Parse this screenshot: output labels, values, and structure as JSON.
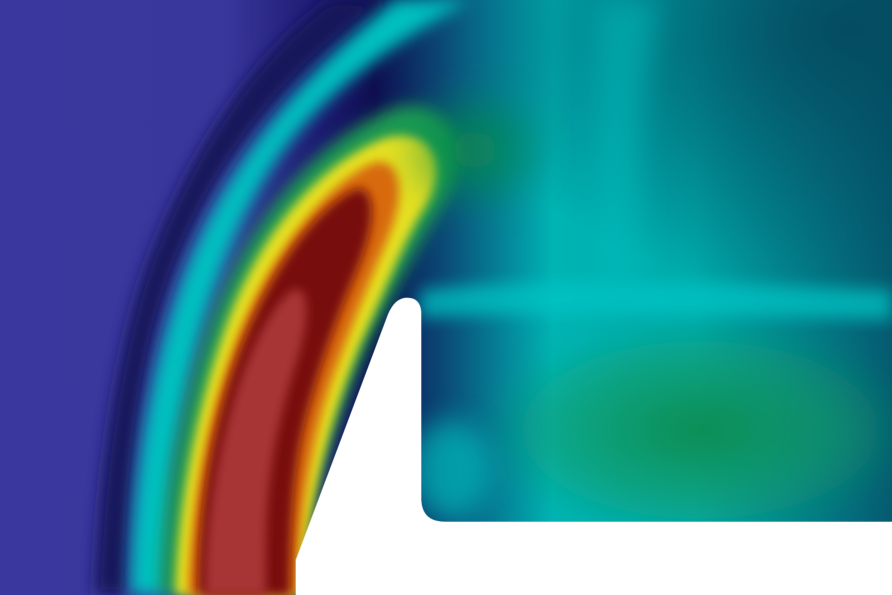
{
  "viewport": {
    "background": "#ffffff",
    "colormap": [
      "#3a379c",
      "#1a1060",
      "#00c8c8",
      "#1aa05a",
      "#e8e020",
      "#d06010",
      "#7a1010",
      "#a83232"
    ],
    "field_hotspot_color": "#a83232",
    "domain_label": ""
  }
}
